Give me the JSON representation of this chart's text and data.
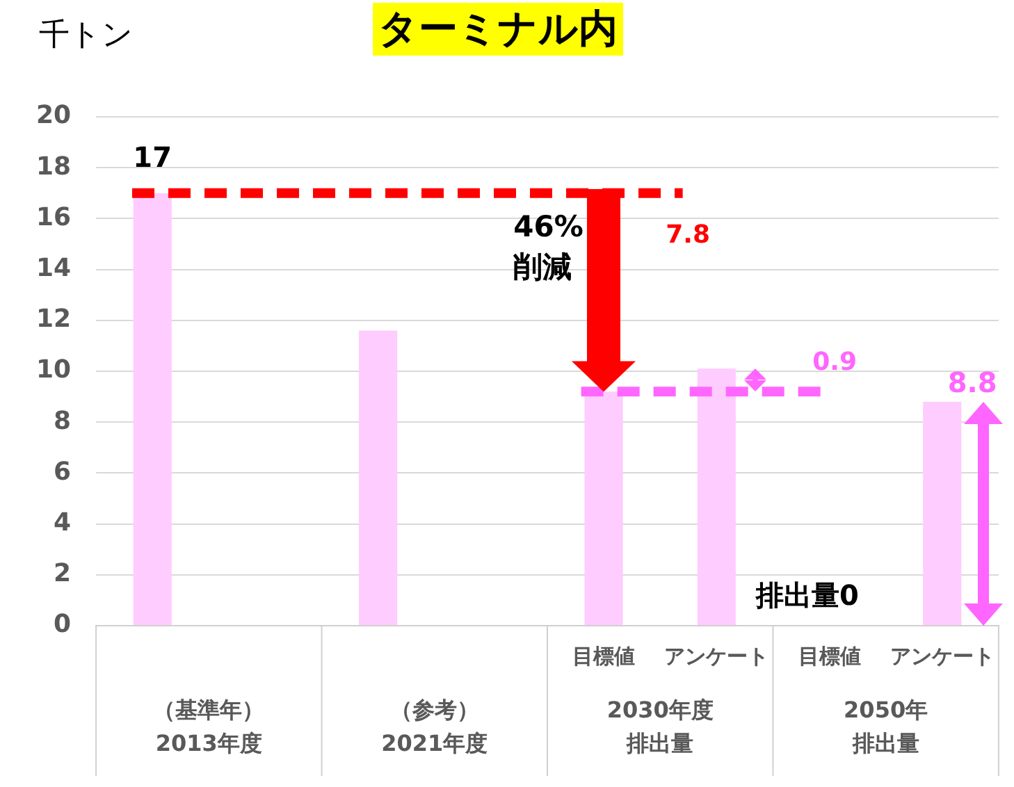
{
  "chart_data": {
    "type": "bar",
    "title": "ターミナル内",
    "ylabel": "千トン",
    "categories": [
      null,
      null,
      null,
      null,
      "目標値",
      "アンケート",
      "目標値",
      "アンケート"
    ],
    "values": [
      17,
      null,
      11.6,
      null,
      9.2,
      10.1,
      0,
      8.8
    ],
    "color": "#ffccff",
    "value_labels": [
      "17",
      null,
      null,
      null,
      null,
      null,
      null,
      "8.8"
    ],
    "ylim": [
      0,
      20
    ],
    "yticks": [
      0,
      2,
      4,
      6,
      8,
      10,
      12,
      14,
      16,
      18,
      20
    ],
    "grid": "y",
    "legend": false,
    "ref_lines": [
      {
        "axis": "y",
        "value": 17,
        "color": "#ff0000",
        "line_style": "dashed"
      },
      {
        "axis": "y",
        "value": 9.2,
        "color": "#ff66ff",
        "line_style": "dashed"
      }
    ],
    "annotations": [
      "（基準年）",
      "2013年度",
      "（参考）",
      "2021年度",
      "2030年度",
      "排出量",
      "2050年",
      "排出量",
      {
        "text": "46%\n削減"
      },
      {
        "text": "7.8"
      },
      {
        "text": "0.9"
      },
      {
        "text": "排出量0"
      }
    ]
  }
}
